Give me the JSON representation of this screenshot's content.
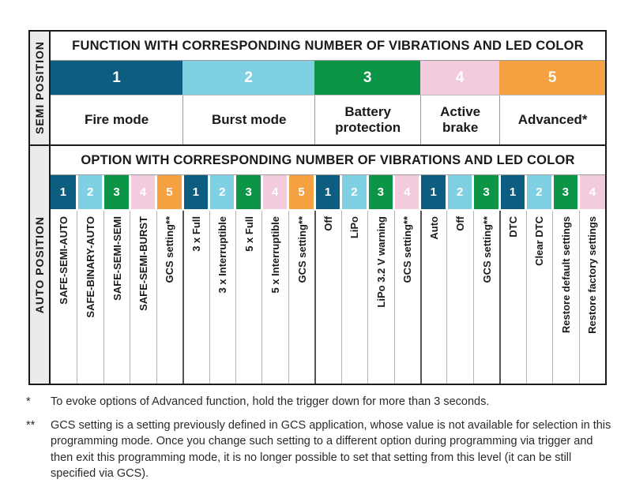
{
  "palette": {
    "1": "#0c5d7f",
    "2": "#7fd0e3",
    "3": "#0c9447",
    "4": "#f2ccdd",
    "5": "#f5a142"
  },
  "table": {
    "semi": {
      "position_label": "SEMI POSITION",
      "title": "FUNCTION WITH CORRESPONDING NUMBER OF VIBRATIONS AND LED COLOR",
      "functions": [
        {
          "number": "1",
          "name": "Fire mode",
          "span": 5
        },
        {
          "number": "2",
          "name": "Burst mode",
          "span": 5
        },
        {
          "number": "3",
          "name": "Battery protection",
          "span": 4
        },
        {
          "number": "4",
          "name": "Active brake",
          "span": 3
        },
        {
          "number": "5",
          "name": "Advanced*",
          "span": 4
        }
      ]
    },
    "auto": {
      "position_label": "AUTO POSITION",
      "title": "OPTION WITH CORRESPONDING NUMBER OF VIBRATIONS AND LED COLOR",
      "options": [
        {
          "number": "1",
          "label": "SAFE-SEMI-AUTO",
          "group": 0
        },
        {
          "number": "2",
          "label": "SAFE-BINARY-AUTO",
          "group": 0
        },
        {
          "number": "3",
          "label": "SAFE-SEMI-SEMI",
          "group": 0
        },
        {
          "number": "4",
          "label": "SAFE-SEMI-BURST",
          "group": 0
        },
        {
          "number": "5",
          "label": "GCS setting**",
          "group": 0
        },
        {
          "number": "1",
          "label": "3 x Full",
          "group": 1
        },
        {
          "number": "2",
          "label": "3 x Interruptible",
          "group": 1
        },
        {
          "number": "3",
          "label": "5 x Full",
          "group": 1
        },
        {
          "number": "4",
          "label": "5 x Interruptible",
          "group": 1
        },
        {
          "number": "5",
          "label": "GCS setting**",
          "group": 1
        },
        {
          "number": "1",
          "label": "Off",
          "group": 2
        },
        {
          "number": "2",
          "label": "LiPo",
          "group": 2
        },
        {
          "number": "3",
          "label": "LiPo 3.2 V warning",
          "group": 2
        },
        {
          "number": "4",
          "label": "GCS setting**",
          "group": 2
        },
        {
          "number": "1",
          "label": "Auto",
          "group": 3
        },
        {
          "number": "2",
          "label": "Off",
          "group": 3
        },
        {
          "number": "3",
          "label": "GCS setting**",
          "group": 3
        },
        {
          "number": "1",
          "label": "DTC",
          "group": 4
        },
        {
          "number": "2",
          "label": "Clear DTC",
          "group": 4
        },
        {
          "number": "3",
          "label": "Restore default settings",
          "group": 4
        },
        {
          "number": "4",
          "label": "Restore factory settings",
          "group": 4
        }
      ]
    }
  },
  "footnotes": [
    {
      "marker": "*",
      "text": "To evoke options of Advanced function, hold the trigger down for more than 3 seconds."
    },
    {
      "marker": "**",
      "text": "GCS setting is a setting previously defined in GCS application, whose value is not available for selection in this programming mode. Once you change such setting to a different option during programming via trigger and then exit this programming mode, it is no longer possible to set that setting from this level (it can be still specified via GCS)."
    }
  ]
}
